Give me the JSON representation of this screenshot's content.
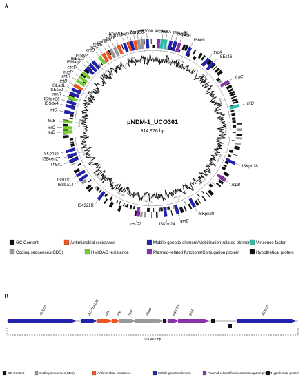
{
  "panels": {
    "a": "A",
    "b": "B"
  },
  "plasmid": {
    "name": "pNDM-1_UCO361",
    "size": "314,976 bp"
  },
  "ticks": [
    {
      "label": "20 kbp",
      "pos": 20
    },
    {
      "label": "40 kbp",
      "pos": 40
    },
    {
      "label": "60 kbp",
      "pos": 60
    },
    {
      "label": "80 kbp",
      "pos": 80
    },
    {
      "label": "100 kbp",
      "pos": 100
    },
    {
      "label": "120 kbp",
      "pos": 120
    },
    {
      "label": "140 kbp",
      "pos": 140
    },
    {
      "label": "160 kbp",
      "pos": 160
    },
    {
      "label": "180 kbp",
      "pos": 180
    },
    {
      "label": "200 kbp",
      "pos": 200
    },
    {
      "label": "220 kbp",
      "pos": 220
    },
    {
      "label": "240 kbp",
      "pos": 240
    },
    {
      "label": "260 kbp",
      "pos": 260
    },
    {
      "label": "280 kbp",
      "pos": 280
    },
    {
      "label": "300 kbp",
      "pos": 300
    }
  ],
  "colors": {
    "gc": "#111111",
    "antimicrobial": "#ee5522",
    "mobile": "#2222aa",
    "virulence": "#33bbaa",
    "cds": "#999999",
    "hm_qac": "#77cc33",
    "plasmid": "#8833aa",
    "hypothetical": "#111111"
  },
  "features_a": [
    {
      "label": "IS609",
      "kb": 22,
      "cat": "mobile",
      "italic": false
    },
    {
      "label": "tnpA",
      "kb": 34,
      "cat": "mobile",
      "italic": true
    },
    {
      "label": "ISEc46",
      "kb": 37.5,
      "cat": "mobile",
      "italic": false
    },
    {
      "label": "traC",
      "kb": 51,
      "cat": "plasmid",
      "italic": true
    },
    {
      "label": "virB",
      "kb": 66,
      "cat": "virulence",
      "italic": true
    },
    {
      "label": "ISKpn26",
      "kb": 99,
      "cat": "mobile",
      "italic": false
    },
    {
      "label": "repB",
      "kb": 110,
      "cat": "plasmid",
      "italic": true
    },
    {
      "label": "ISKpn28",
      "kb": 133,
      "cat": "mobile",
      "italic": false
    },
    {
      "label": "tpnB",
      "kb": 143,
      "cat": "mobile",
      "italic": true
    },
    {
      "label": "ISKpn24",
      "kb": 150,
      "cat": "mobile",
      "italic": false
    },
    {
      "label": "recD2",
      "kb": 166,
      "cat": "plasmid",
      "italic": true
    },
    {
      "label": "IS4321R",
      "kb": 190,
      "cat": "mobile",
      "italic": false
    },
    {
      "label": "ISSba14",
      "kb": 205,
      "cat": "mobile",
      "italic": false
    },
    {
      "label": "IS3000",
      "kb": 208,
      "cat": "mobile",
      "italic": false
    },
    {
      "label": "TnEc1",
      "kb": 217,
      "cat": "mobile",
      "italic": false
    },
    {
      "label": "ISBcen27",
      "kb": 220,
      "cat": "mobile",
      "italic": false
    },
    {
      "label": "ISKpn26",
      "kb": 223,
      "cat": "mobile",
      "italic": false
    },
    {
      "label": "terD",
      "kb": 234,
      "cat": "hm_qac",
      "italic": true
    },
    {
      "label": "terC",
      "kb": 236.5,
      "cat": "hm_qac",
      "italic": true
    },
    {
      "label": "terB",
      "kb": 240,
      "cat": "hm_qac",
      "italic": true
    },
    {
      "label": "intS",
      "kb": 245.5,
      "cat": "mobile",
      "italic": true
    },
    {
      "label": "ISSde4",
      "kb": 249,
      "cat": "mobile",
      "italic": false
    },
    {
      "label": "ISKpn26",
      "kb": 251.5,
      "cat": "mobile",
      "italic": false
    },
    {
      "label": "cueR",
      "kb": 254,
      "cat": "hm_qac",
      "italic": true
    },
    {
      "label": "ISEc52",
      "kb": 256.5,
      "cat": "mobile",
      "italic": false
    },
    {
      "label": "ISLad1",
      "kb": 259,
      "cat": "mobile",
      "italic": false
    },
    {
      "label": "tetD",
      "kb": 261.5,
      "cat": "antimicrobial",
      "italic": true
    },
    {
      "label": "zntR",
      "kb": 264.5,
      "cat": "hm_qac",
      "italic": true
    },
    {
      "label": "cueR",
      "kb": 267,
      "cat": "hm_qac",
      "italic": true
    },
    {
      "label": "czcD",
      "kb": 270,
      "cat": "hm_qac",
      "italic": true
    },
    {
      "label": "ISMag2",
      "kb": 273.5,
      "cat": "mobile",
      "italic": false
    },
    {
      "label": "ISEa11",
      "kb": 276,
      "cat": "mobile",
      "italic": false
    },
    {
      "label": "ISSty2",
      "kb": 278.5,
      "cat": "mobile",
      "italic": false
    },
    {
      "label": "crcB",
      "kb": 283,
      "cat": "hm_qac",
      "italic": true
    },
    {
      "label": "acrF",
      "kb": 285.5,
      "cat": "antimicrobial",
      "italic": true
    },
    {
      "label": "mdtE",
      "kb": 288,
      "cat": "antimicrobial",
      "italic": true
    },
    {
      "label": "pprM",
      "kb": 290.5,
      "cat": "cds",
      "italic": true
    },
    {
      "label": "ogrB",
      "kb": 293,
      "cat": "cds",
      "italic": true
    },
    {
      "label": "mdtE",
      "kb": 295.5,
      "cat": "antimicrobial",
      "italic": true
    },
    {
      "label": "IS3000",
      "kb": 299,
      "cat": "mobile",
      "italic": false
    },
    {
      "label": "ble",
      "kb": 301.5,
      "cat": "antimicrobial",
      "italic": true
    },
    {
      "label": "ΔISAba125",
      "kb": 303,
      "cat": "mobile",
      "italic": false
    },
    {
      "label": "bla",
      "kb": 305,
      "cat": "antimicrobial",
      "italic": true
    },
    {
      "label": "ΔgroES",
      "kb": 307,
      "cat": "cds",
      "italic": false
    },
    {
      "label": "groL",
      "kb": 309,
      "cat": "cds",
      "italic": true
    },
    {
      "label": "IS3000",
      "kb": 312,
      "cat": "mobile",
      "italic": false
    },
    {
      "label": "klcA",
      "kb": 3.5,
      "cat": "plasmid",
      "italic": true
    },
    {
      "label": "cbeA",
      "kb": 5.5,
      "cat": "virulence",
      "italic": true
    },
    {
      "label": "cbtA",
      "kb": 7.5,
      "cat": "virulence",
      "italic": true
    },
    {
      "label": "ISKpn24",
      "kb": 10.5,
      "cat": "mobile",
      "italic": false
    },
    {
      "label": "tnpB",
      "kb": 13,
      "cat": "mobile",
      "italic": true
    },
    {
      "label": "repB",
      "kb": 15.5,
      "cat": "plasmid",
      "italic": true
    }
  ],
  "legend_a": [
    {
      "label": "GC Content",
      "cat": "gc"
    },
    {
      "label": "Antimicrobial resistance",
      "cat": "antimicrobial"
    },
    {
      "label": "Mobile-genetic element/Mobilization-related element",
      "cat": "mobile"
    },
    {
      "label": "Virulence factor",
      "cat": "virulence"
    },
    {
      "label": "Coding sequences(CDS)",
      "cat": "cds"
    },
    {
      "label": "HM/QAC resistance",
      "cat": "hm_qac"
    },
    {
      "label": "Plasmid-related functions/Conjugation protein",
      "cat": "plasmid"
    },
    {
      "label": "Hypothetical protein",
      "cat": "hypothetical"
    }
  ],
  "genes_b": [
    {
      "label": "IS3000",
      "cat": "mobile"
    },
    {
      "label": "ΔISAba125",
      "cat": "mobile"
    },
    {
      "label": "bla",
      "cat": "antimicrobial"
    },
    {
      "label": "ble",
      "cat": "antimicrobial"
    },
    {
      "label": "trpF",
      "cat": "cds"
    },
    {
      "label": "dsbD",
      "cat": "cds"
    },
    {
      "label": "ΔgroES",
      "cat": "plasmid"
    },
    {
      "label": "groL",
      "cat": "plasmid"
    },
    {
      "label": "IS3000",
      "cat": "mobile"
    }
  ],
  "span_b": "~11,467 bp",
  "legend_b": [
    {
      "label": "GC Content",
      "cat": "gc"
    },
    {
      "label": "Coding sequences(CDS)",
      "cat": "cds"
    },
    {
      "label": "Antimicrobial resistance",
      "cat": "antimicrobial"
    },
    {
      "label": "Mobile-genetic element",
      "cat": "mobile"
    },
    {
      "label": "Plasmid-related functions/Conjugation protein",
      "cat": "plasmid"
    },
    {
      "label": "Hypothetical protein",
      "cat": "hypothetical"
    }
  ]
}
